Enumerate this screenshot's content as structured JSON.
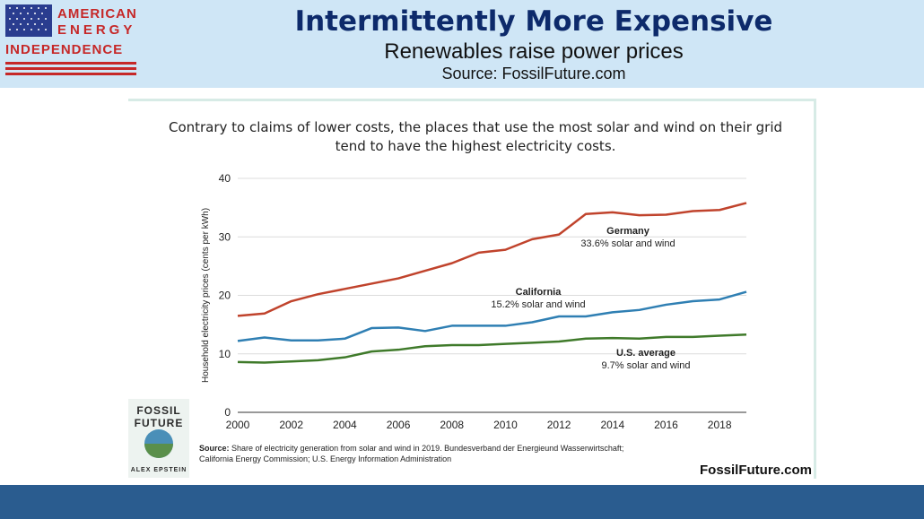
{
  "header": {
    "logo_line1": "AMERICAN",
    "logo_line2": "ENERGY",
    "logo_line3": "INDEPENDENCE",
    "title": "Intermittently More Expensive",
    "subtitle": "Renewables raise power prices",
    "source": "Source: FossilFuture.com"
  },
  "colors": {
    "header_bg": "#cfe6f6",
    "title": "#0d2a6b",
    "footer_bar": "#2a5c8f",
    "germany": "#c0432c",
    "california": "#2f7fb3",
    "us_average": "#3f7a2a"
  },
  "book": {
    "title_line1": "FOSSIL",
    "title_line2": "FUTURE",
    "author": "ALEX EPSTEIN"
  },
  "note": {
    "label": "Source:",
    "text": "Share of electricity generation from solar and wind in 2019. Bundesverband der Energieund Wasserwirtschaft;",
    "text2": "California Energy Commission; U.S. Energy Information Administration"
  },
  "brand": "FossilFuture.com",
  "chart_data": {
    "type": "line",
    "title": "Contrary to claims of lower costs, the places that use the most solar and wind on their grid tend to have the highest electricity costs.",
    "xlabel": "",
    "ylabel": "Household electricity prices (cents per kWh)",
    "xlim": [
      2000,
      2019
    ],
    "ylim": [
      0,
      40
    ],
    "x_ticks": [
      2000,
      2002,
      2004,
      2006,
      2008,
      2010,
      2012,
      2014,
      2016,
      2018
    ],
    "y_ticks": [
      0,
      10,
      20,
      30,
      40
    ],
    "grid": true,
    "x": [
      2000,
      2001,
      2002,
      2003,
      2004,
      2005,
      2006,
      2007,
      2008,
      2009,
      2010,
      2011,
      2012,
      2013,
      2014,
      2015,
      2016,
      2017,
      2018,
      2019
    ],
    "series": [
      {
        "name": "Germany",
        "annotation": "33.6% solar and wind",
        "color": "#c0432c",
        "values": [
          16.5,
          16.9,
          19.0,
          20.2,
          21.1,
          22.0,
          22.9,
          24.2,
          25.5,
          27.3,
          27.8,
          29.6,
          30.4,
          33.9,
          34.2,
          33.7,
          33.8,
          34.4,
          34.6,
          35.8
        ]
      },
      {
        "name": "California",
        "annotation": "15.2% solar and wind",
        "color": "#2f7fb3",
        "values": [
          12.2,
          12.8,
          12.3,
          12.3,
          12.6,
          14.4,
          14.5,
          13.9,
          14.8,
          14.8,
          14.8,
          15.4,
          16.4,
          16.4,
          17.1,
          17.5,
          18.4,
          19.0,
          19.3,
          20.6
        ]
      },
      {
        "name": "U.S. average",
        "annotation": "9.7% solar and wind",
        "color": "#3f7a2a",
        "values": [
          8.6,
          8.5,
          8.7,
          8.9,
          9.4,
          10.4,
          10.7,
          11.3,
          11.5,
          11.5,
          11.7,
          11.9,
          12.1,
          12.6,
          12.7,
          12.6,
          12.9,
          12.9,
          13.1,
          13.3
        ]
      }
    ]
  }
}
